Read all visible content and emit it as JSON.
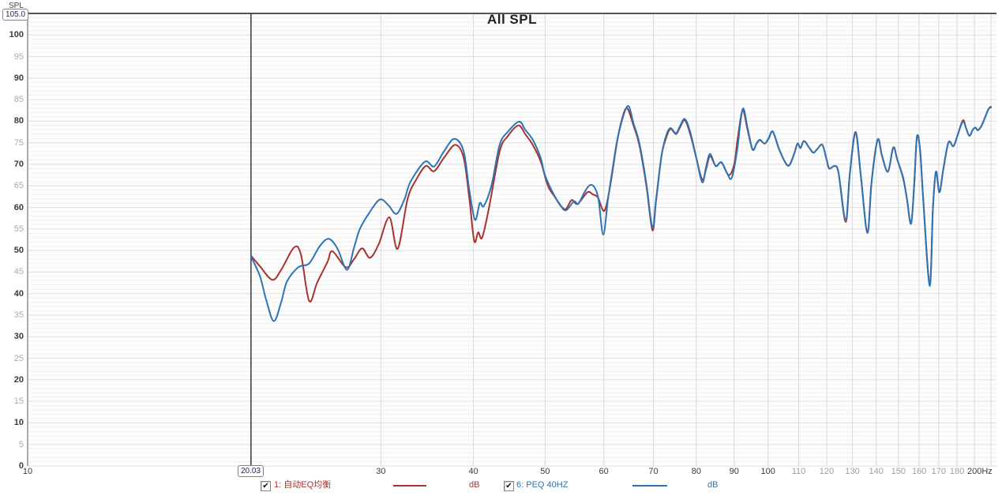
{
  "header": {
    "title": "All SPL"
  },
  "y_axis": {
    "label": "SPL",
    "cursor_value": "105.0",
    "min": 0,
    "max": 105,
    "tick_step": 5,
    "tick_values": [
      100,
      95,
      90,
      85,
      80,
      75,
      70,
      65,
      60,
      55,
      50,
      45,
      40,
      35,
      30,
      25,
      20,
      15,
      10,
      5,
      0
    ]
  },
  "x_axis": {
    "unit": "Hz",
    "cursor_value": "20.03",
    "cursor_freq": 20.03,
    "min": 10,
    "max": 200,
    "grid_freqs": [
      20,
      30,
      40,
      50,
      60,
      70,
      80,
      90,
      100,
      110,
      120,
      130,
      140,
      150,
      160,
      170,
      180,
      190,
      200
    ],
    "ticks": [
      {
        "f": 10,
        "label": "10",
        "shade": "dark"
      },
      {
        "f": 30,
        "label": "30",
        "shade": "dark"
      },
      {
        "f": 40,
        "label": "40",
        "shade": "dark"
      },
      {
        "f": 50,
        "label": "50",
        "shade": "dark"
      },
      {
        "f": 60,
        "label": "60",
        "shade": "dark"
      },
      {
        "f": 70,
        "label": "70",
        "shade": "dark"
      },
      {
        "f": 80,
        "label": "80",
        "shade": "dark"
      },
      {
        "f": 90,
        "label": "90",
        "shade": "dark"
      },
      {
        "f": 100,
        "label": "100",
        "shade": "dark"
      },
      {
        "f": 110,
        "label": "110",
        "shade": "light"
      },
      {
        "f": 120,
        "label": "120",
        "shade": "light"
      },
      {
        "f": 130,
        "label": "130",
        "shade": "light"
      },
      {
        "f": 140,
        "label": "140",
        "shade": "light"
      },
      {
        "f": 150,
        "label": "150",
        "shade": "light"
      },
      {
        "f": 160,
        "label": "160",
        "shade": "light"
      },
      {
        "f": 170,
        "label": "170",
        "shade": "light"
      },
      {
        "f": 180,
        "label": "180",
        "shade": "light"
      },
      {
        "f": 200,
        "label": "200Hz",
        "shade": "dark",
        "align": "right"
      }
    ]
  },
  "legend": {
    "items": [
      {
        "check_glyph": "✔",
        "label": "1: 自动EQ均衡",
        "unit": "dB",
        "color": "#a8322d",
        "checked": true
      },
      {
        "check_glyph": "✔",
        "label": "6: PEQ 40HZ",
        "unit": "dB",
        "color": "#2d74b5",
        "checked": true
      }
    ]
  },
  "colors": {
    "plot_bg": "#fdfdfd",
    "grid_minor": "#f1f1f1",
    "grid_major": "#dedede",
    "grid_vert": "#d9d9d9",
    "top_border": "#555555",
    "left_border": "#aaaaaa",
    "cursor": "#3c3c3c"
  },
  "chart_data": {
    "type": "line",
    "title": "All SPL",
    "xlabel": "Hz",
    "ylabel": "SPL (dB)",
    "x_scale": "log",
    "xlim": [
      10,
      200
    ],
    "ylim": [
      0,
      105
    ],
    "grid": true,
    "legend_position": "bottom",
    "cursor_freq": 20.03,
    "cursor_level": 105.0,
    "series": [
      {
        "name": "1: 自动EQ均衡",
        "unit": "dB",
        "color": "#a8322d",
        "points": [
          [
            20.03,
            48.8
          ],
          [
            20.6,
            46.3
          ],
          [
            21.4,
            43.2
          ],
          [
            22.0,
            45.5
          ],
          [
            22.9,
            50.7
          ],
          [
            23.4,
            49.0
          ],
          [
            24.0,
            38.3
          ],
          [
            24.6,
            42.5
          ],
          [
            25.4,
            47.3
          ],
          [
            25.8,
            49.8
          ],
          [
            26.9,
            46.1
          ],
          [
            27.6,
            48.0
          ],
          [
            28.3,
            50.5
          ],
          [
            29.0,
            48.3
          ],
          [
            29.8,
            51.5
          ],
          [
            30.8,
            57.7
          ],
          [
            31.6,
            50.4
          ],
          [
            32.6,
            62.0
          ],
          [
            33.5,
            66.5
          ],
          [
            34.5,
            69.6
          ],
          [
            35.4,
            68.4
          ],
          [
            36.5,
            71.5
          ],
          [
            37.8,
            74.5
          ],
          [
            38.8,
            71.5
          ],
          [
            39.5,
            62.0
          ],
          [
            40.1,
            52.2
          ],
          [
            40.6,
            54.2
          ],
          [
            41.1,
            53.0
          ],
          [
            42.0,
            60.0
          ],
          [
            43.4,
            73.0
          ],
          [
            44.5,
            76.5
          ],
          [
            46.0,
            79.0
          ],
          [
            47.0,
            77.0
          ],
          [
            48.1,
            74.5
          ],
          [
            49.3,
            70.7
          ],
          [
            50.4,
            65.1
          ],
          [
            51.5,
            62.5
          ],
          [
            52.4,
            60.5
          ],
          [
            53.3,
            59.6
          ],
          [
            54.3,
            61.7
          ],
          [
            55.3,
            60.8
          ],
          [
            57.0,
            63.5
          ],
          [
            58.0,
            63.0
          ],
          [
            58.9,
            62.3
          ],
          [
            60.1,
            59.2
          ],
          [
            61.2,
            65.0
          ],
          [
            62.5,
            75.0
          ],
          [
            63.5,
            80.5
          ],
          [
            64.5,
            83.0
          ],
          [
            65.8,
            79.0
          ],
          [
            67.0,
            74.5
          ],
          [
            68.5,
            65.0
          ],
          [
            69.8,
            54.7
          ],
          [
            70.6,
            61.5
          ],
          [
            71.8,
            72.0
          ],
          [
            72.8,
            76.0
          ],
          [
            73.8,
            78.2
          ],
          [
            75.1,
            77.0
          ],
          [
            76.0,
            78.5
          ],
          [
            77.2,
            80.2
          ],
          [
            78.5,
            77.0
          ],
          [
            80.0,
            71.5
          ],
          [
            81.5,
            66.4
          ],
          [
            82.5,
            69.0
          ],
          [
            83.5,
            71.9
          ],
          [
            85.0,
            69.6
          ],
          [
            86.5,
            70.4
          ],
          [
            88.5,
            67.5
          ],
          [
            90.0,
            70.0
          ],
          [
            91.0,
            76.0
          ],
          [
            92.4,
            82.5
          ],
          [
            93.8,
            78.0
          ],
          [
            95.3,
            73.4
          ],
          [
            96.5,
            74.8
          ],
          [
            97.5,
            75.6
          ],
          [
            99.0,
            74.8
          ],
          [
            100.2,
            76.0
          ],
          [
            101.5,
            77.5
          ],
          [
            103.5,
            73.5
          ],
          [
            105.8,
            70.1
          ],
          [
            107.0,
            70.0
          ],
          [
            108.5,
            72.5
          ],
          [
            109.6,
            74.8
          ],
          [
            110.6,
            73.8
          ],
          [
            111.8,
            75.4
          ],
          [
            113.5,
            74.0
          ],
          [
            115.1,
            72.7
          ],
          [
            116.5,
            73.5
          ],
          [
            118.4,
            74.5
          ],
          [
            120.0,
            71.0
          ],
          [
            121.0,
            69.0
          ],
          [
            123.0,
            69.6
          ],
          [
            124.5,
            68.0
          ],
          [
            127.3,
            56.6
          ],
          [
            129.0,
            68.0
          ],
          [
            131.3,
            77.5
          ],
          [
            133.5,
            67.0
          ],
          [
            136.2,
            54.1
          ],
          [
            138.0,
            66.0
          ],
          [
            140.6,
            75.7
          ],
          [
            142.5,
            72.0
          ],
          [
            145.2,
            68.3
          ],
          [
            147.6,
            73.9
          ],
          [
            149.5,
            71.0
          ],
          [
            152.2,
            66.9
          ],
          [
            154.0,
            62.0
          ],
          [
            156.0,
            56.2
          ],
          [
            157.5,
            65.0
          ],
          [
            158.9,
            76.4
          ],
          [
            160.5,
            73.0
          ],
          [
            162.0,
            62.0
          ],
          [
            165.3,
            42.2
          ],
          [
            167.0,
            60.0
          ],
          [
            168.6,
            68.3
          ],
          [
            170.4,
            63.5
          ],
          [
            172.5,
            69.0
          ],
          [
            175.3,
            75.1
          ],
          [
            178.0,
            74.2
          ],
          [
            180.5,
            77.0
          ],
          [
            183.3,
            80.2
          ],
          [
            185.0,
            78.5
          ],
          [
            187.0,
            76.6
          ],
          [
            189.0,
            78.0
          ],
          [
            190.6,
            78.5
          ],
          [
            192.0,
            77.9
          ],
          [
            194.0,
            78.8
          ],
          [
            196.5,
            81.0
          ],
          [
            198.5,
            82.8
          ],
          [
            200.0,
            83.2
          ]
        ]
      },
      {
        "name": "6: PEQ 40HZ",
        "unit": "dB",
        "color": "#2d74b5",
        "points": [
          [
            20.03,
            48.6
          ],
          [
            20.6,
            44.0
          ],
          [
            21.0,
            38.5
          ],
          [
            21.5,
            33.6
          ],
          [
            22.0,
            38.0
          ],
          [
            22.4,
            42.8
          ],
          [
            23.2,
            46.1
          ],
          [
            24.0,
            47.0
          ],
          [
            24.8,
            51.0
          ],
          [
            25.5,
            52.7
          ],
          [
            26.2,
            50.5
          ],
          [
            27.0,
            45.5
          ],
          [
            27.6,
            50.7
          ],
          [
            28.1,
            55.0
          ],
          [
            28.9,
            58.6
          ],
          [
            29.9,
            61.8
          ],
          [
            30.7,
            60.5
          ],
          [
            31.5,
            58.5
          ],
          [
            32.3,
            62.0
          ],
          [
            32.9,
            66.0
          ],
          [
            34.4,
            70.6
          ],
          [
            35.4,
            69.5
          ],
          [
            36.5,
            73.0
          ],
          [
            37.7,
            75.9
          ],
          [
            38.8,
            73.0
          ],
          [
            39.5,
            64.0
          ],
          [
            40.2,
            57.1
          ],
          [
            40.8,
            61.0
          ],
          [
            41.3,
            60.3
          ],
          [
            42.3,
            65.0
          ],
          [
            43.4,
            74.5
          ],
          [
            44.5,
            77.5
          ],
          [
            46.1,
            79.9
          ],
          [
            47.0,
            78.0
          ],
          [
            48.1,
            75.7
          ],
          [
            49.3,
            71.5
          ],
          [
            49.9,
            67.8
          ],
          [
            51.0,
            64.0
          ],
          [
            52.2,
            61.0
          ],
          [
            53.3,
            59.3
          ],
          [
            54.7,
            61.4
          ],
          [
            55.4,
            60.8
          ],
          [
            56.5,
            63.5
          ],
          [
            57.4,
            65.1
          ],
          [
            58.2,
            64.8
          ],
          [
            59.0,
            62.0
          ],
          [
            59.9,
            53.7
          ],
          [
            60.8,
            62.0
          ],
          [
            61.8,
            70.0
          ],
          [
            62.8,
            77.0
          ],
          [
            64.6,
            83.5
          ],
          [
            65.8,
            79.5
          ],
          [
            67.0,
            75.0
          ],
          [
            68.5,
            65.5
          ],
          [
            69.8,
            55.3
          ],
          [
            70.6,
            62.0
          ],
          [
            71.8,
            72.0
          ],
          [
            72.8,
            76.5
          ],
          [
            73.8,
            78.4
          ],
          [
            75.1,
            77.2
          ],
          [
            76.0,
            78.8
          ],
          [
            77.2,
            80.5
          ],
          [
            78.5,
            77.5
          ],
          [
            80.0,
            71.5
          ],
          [
            81.5,
            65.8
          ],
          [
            82.5,
            69.5
          ],
          [
            83.5,
            72.4
          ],
          [
            85.0,
            69.6
          ],
          [
            86.5,
            70.5
          ],
          [
            88.0,
            68.0
          ],
          [
            89.3,
            66.8
          ],
          [
            90.8,
            73.0
          ],
          [
            92.4,
            82.8
          ],
          [
            93.8,
            78.5
          ],
          [
            95.3,
            73.4
          ],
          [
            96.5,
            74.9
          ],
          [
            97.5,
            75.7
          ],
          [
            99.0,
            74.8
          ],
          [
            100.2,
            76.1
          ],
          [
            101.5,
            77.6
          ],
          [
            103.5,
            73.5
          ],
          [
            105.8,
            70.1
          ],
          [
            107.0,
            69.9
          ],
          [
            108.5,
            72.5
          ],
          [
            109.6,
            74.8
          ],
          [
            110.6,
            73.8
          ],
          [
            111.8,
            75.4
          ],
          [
            113.5,
            74.0
          ],
          [
            115.1,
            72.7
          ],
          [
            116.5,
            73.5
          ],
          [
            118.4,
            74.5
          ],
          [
            120.0,
            71.0
          ],
          [
            121.0,
            69.0
          ],
          [
            123.0,
            69.6
          ],
          [
            124.5,
            68.0
          ],
          [
            127.3,
            57.2
          ],
          [
            129.0,
            68.0
          ],
          [
            131.3,
            77.2
          ],
          [
            133.5,
            67.0
          ],
          [
            136.2,
            54.1
          ],
          [
            138.0,
            66.0
          ],
          [
            140.6,
            75.7
          ],
          [
            142.5,
            72.0
          ],
          [
            145.2,
            68.3
          ],
          [
            147.6,
            73.9
          ],
          [
            149.5,
            71.0
          ],
          [
            152.2,
            66.7
          ],
          [
            154.0,
            62.0
          ],
          [
            156.0,
            56.2
          ],
          [
            157.5,
            65.0
          ],
          [
            158.9,
            76.4
          ],
          [
            160.5,
            73.0
          ],
          [
            162.0,
            62.0
          ],
          [
            165.3,
            41.8
          ],
          [
            167.0,
            60.0
          ],
          [
            168.6,
            68.3
          ],
          [
            170.4,
            63.5
          ],
          [
            172.5,
            69.0
          ],
          [
            175.3,
            75.1
          ],
          [
            178.0,
            74.2
          ],
          [
            180.5,
            77.0
          ],
          [
            183.3,
            79.9
          ],
          [
            185.0,
            78.5
          ],
          [
            187.0,
            76.6
          ],
          [
            189.0,
            78.0
          ],
          [
            190.6,
            78.5
          ],
          [
            192.0,
            77.9
          ],
          [
            194.0,
            78.8
          ],
          [
            196.5,
            81.0
          ],
          [
            198.5,
            82.8
          ],
          [
            200.0,
            83.4
          ]
        ]
      }
    ]
  }
}
